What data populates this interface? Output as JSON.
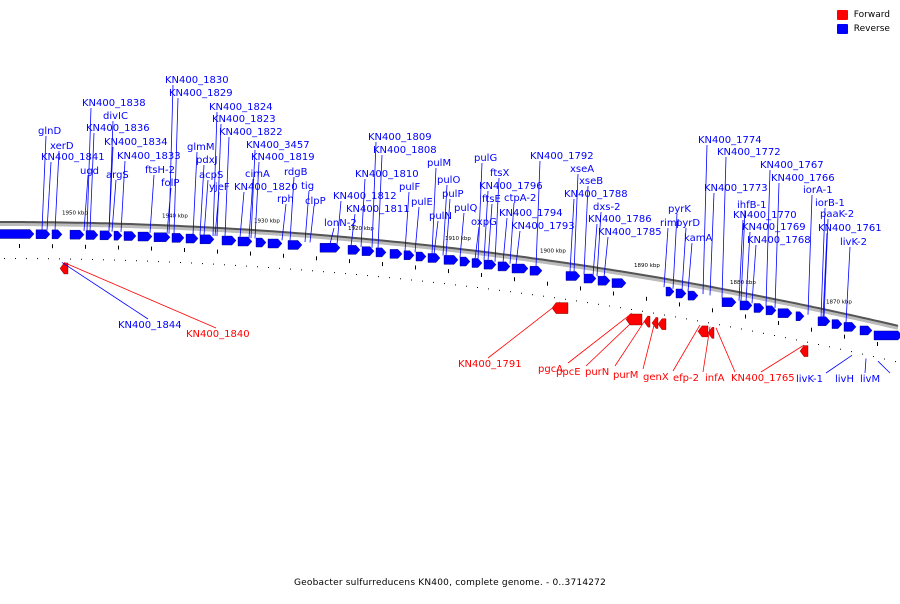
{
  "legend": {
    "forward_label": "Forward",
    "reverse_label": "Reverse",
    "forward_color": "#ff0000",
    "reverse_color": "#0000ff"
  },
  "caption": "Geobacter sulfurreducens KN400, complete genome. - 0..3714272",
  "axis_ticks": [
    "1950 kbp",
    "1940 kbp",
    "1930 kbp",
    "1920 kbp",
    "1910 kbp",
    "1900 kbp",
    "1890 kbp",
    "1880 kbp",
    "1870 kbp"
  ],
  "reverse_labels": [
    "glnD",
    "xerD",
    "KN400_1841",
    "ugd",
    "KN400_1838",
    "divIC",
    "KN400_1836",
    "KN400_1834",
    "argS",
    "KN400_1833",
    "ftsH-2",
    "folP",
    "KN400_1830",
    "KN400_1829",
    "glmM",
    "pdxJ",
    "acpS",
    "yjeF",
    "KN400_1824",
    "KN400_1823",
    "KN400_1822",
    "cimA",
    "KN400_3457",
    "KN400_1820",
    "KN400_1819",
    "rph",
    "rdgB",
    "tig",
    "clpP",
    "lonN-2",
    "KN400_1812",
    "KN400_1811",
    "KN400_1810",
    "KN400_1809",
    "KN400_1808",
    "pulF",
    "pulE",
    "pulM",
    "pulO",
    "pulP",
    "pulN",
    "pulQ",
    "pulG",
    "ftsX",
    "ftsE",
    "oxpG",
    "KN400_1796",
    "ctpA-2",
    "KN400_1794",
    "KN400_1793",
    "KN400_1792",
    "xseA",
    "xseB",
    "KN400_1788",
    "dxs-2",
    "KN400_1786",
    "KN400_1785",
    "rimI",
    "pyrK",
    "pyrD",
    "kamA",
    "KN400_1774",
    "KN400_1773",
    "ihfB-1",
    "KN400_1772",
    "KN400_1770",
    "KN400_1769",
    "KN400_1768",
    "KN400_1767",
    "KN400_1766",
    "iorA-1",
    "iorB-1",
    "paaK-2",
    "KN400_1761",
    "livK-2"
  ],
  "lower_labels": [
    {
      "text": "KN400_1844",
      "strand": "reverse"
    },
    {
      "text": "KN400_1840",
      "strand": "forward"
    },
    {
      "text": "KN400_1791",
      "strand": "forward"
    },
    {
      "text": "pgcA",
      "strand": "forward"
    },
    {
      "text": "ppcE",
      "strand": "forward"
    },
    {
      "text": "purN",
      "strand": "forward"
    },
    {
      "text": "purM",
      "strand": "forward"
    },
    {
      "text": "genX",
      "strand": "forward"
    },
    {
      "text": "efp-2",
      "strand": "forward"
    },
    {
      "text": "infA",
      "strand": "forward"
    },
    {
      "text": "KN400_1765",
      "strand": "forward"
    },
    {
      "text": "livK-1",
      "strand": "reverse"
    },
    {
      "text": "livH",
      "strand": "reverse"
    },
    {
      "text": "livM",
      "strand": "reverse"
    }
  ]
}
